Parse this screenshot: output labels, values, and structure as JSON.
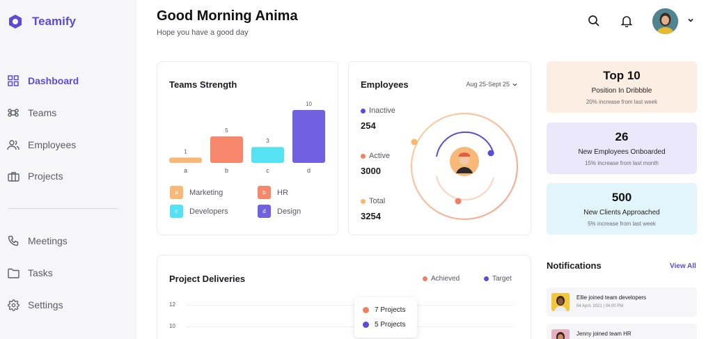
{
  "app": {
    "name": "Teamify"
  },
  "sidebar": {
    "items": [
      {
        "label": "Dashboard",
        "icon": "grid-icon",
        "active": true
      },
      {
        "label": "Teams",
        "icon": "command-icon"
      },
      {
        "label": "Employees",
        "icon": "users-icon"
      },
      {
        "label": "Projects",
        "icon": "briefcase-icon"
      },
      {
        "label": "Meetings",
        "icon": "phone-icon"
      },
      {
        "label": "Tasks",
        "icon": "folder-icon"
      },
      {
        "label": "Settings",
        "icon": "gear-icon"
      }
    ]
  },
  "header": {
    "title": "Good Morning Anima",
    "subtitle": "Hope you have a good day"
  },
  "teams_strength": {
    "title": "Teams Strength",
    "legend": [
      {
        "key": "a",
        "label": "Marketing",
        "color": "#f8b878"
      },
      {
        "key": "b",
        "label": "HR",
        "color": "#f7876a"
      },
      {
        "key": "c",
        "label": "Developers",
        "color": "#55e2f3"
      },
      {
        "key": "d",
        "label": "Design",
        "color": "#7160e0"
      }
    ]
  },
  "employees": {
    "title": "Employees",
    "date_range": "Aug 25-Sept 25",
    "stats": [
      {
        "label": "Inactive",
        "value": "254",
        "color": "#5b4bd8"
      },
      {
        "label": "Active",
        "value": "3000",
        "color": "#f07f63"
      },
      {
        "label": "Total",
        "value": "3254",
        "color": "#f7b968"
      }
    ]
  },
  "stat_cards": [
    {
      "big": "Top 10",
      "mid": "Position In Dribbble",
      "small": "20% increase from last week",
      "bg": "#fdeee3"
    },
    {
      "big": "26",
      "mid": "New Employees Onboarded",
      "small": "15% increase from last month",
      "bg": "#ebe8fb"
    },
    {
      "big": "500",
      "mid": "New Clients Approached",
      "small": "5% increase from last week",
      "bg": "#e2f5fb"
    }
  ],
  "notifications": {
    "title": "Notifications",
    "view_all": "View All",
    "items": [
      {
        "text": "Ellie joined team developers",
        "time": "04 April, 2021 | 04:00 PM"
      },
      {
        "text": "Jenny joined team HR",
        "time": ""
      }
    ]
  },
  "project_deliveries": {
    "title": "Project Deliveries",
    "legend": [
      {
        "label": "Achieved",
        "color": "#f07f63"
      },
      {
        "label": "Target",
        "color": "#5b4bd8"
      }
    ],
    "y_ticks": [
      "12",
      "10"
    ],
    "tooltip": [
      {
        "label": "7 Projects",
        "color": "#f07f63"
      },
      {
        "label": "5 Projects",
        "color": "#5b4bd8"
      }
    ]
  },
  "chart_data": [
    {
      "type": "bar",
      "title": "Teams Strength",
      "categories": [
        "a",
        "b",
        "c",
        "d"
      ],
      "values": [
        1,
        5,
        3,
        10
      ],
      "colors": [
        "#f8b878",
        "#f7876a",
        "#55e2f3",
        "#7160e0"
      ],
      "ylim": [
        0,
        10
      ],
      "grid": false
    }
  ]
}
